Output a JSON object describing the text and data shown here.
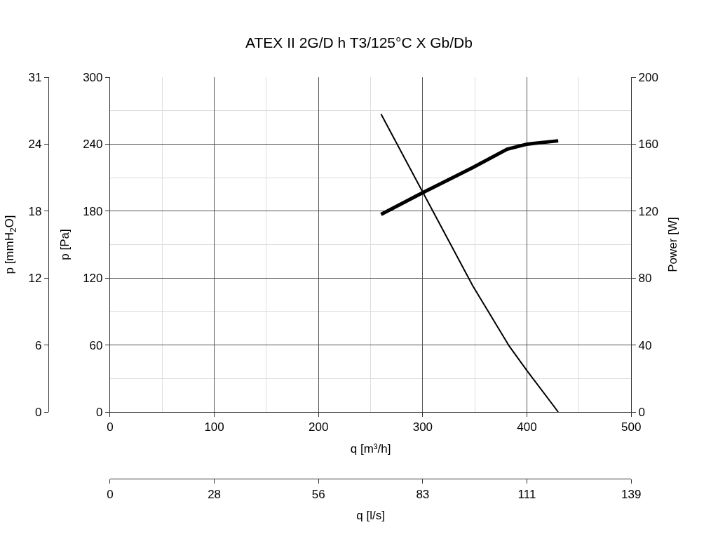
{
  "chart_data": {
    "type": "line",
    "title": "ATEX II 2G/D h T3/125°C X Gb/Db",
    "xlabel": "q [m³/h]",
    "ylabel": "p [Pa]",
    "y2label": "Power [W]",
    "y3label": "p [mmH$_{2}$O]",
    "x2label": "q [l/s]",
    "xlim": [
      0,
      500
    ],
    "xticks": [
      0,
      {
        "value": 50,
        "label": null
      },
      100,
      {
        "value": 150,
        "label": null
      },
      200,
      {
        "value": 250,
        "label": null
      },
      300,
      {
        "value": 350,
        "label": null
      },
      400,
      {
        "value": 450,
        "label": null
      },
      500
    ],
    "ylim": [
      0,
      300
    ],
    "yticks": [
      0,
      {
        "value": 30,
        "label": null
      },
      60,
      {
        "value": 90,
        "label": null
      },
      120,
      {
        "value": 150,
        "label": null
      },
      180,
      {
        "value": 210,
        "label": null
      },
      240,
      {
        "value": 270,
        "label": null
      },
      300
    ],
    "y2lim": [
      0,
      200
    ],
    "y2ticks": [
      0,
      40,
      80,
      120,
      160,
      200
    ],
    "y3lim": [
      0,
      30.59
    ],
    "y3ticks": [
      0,
      {
        "value": 6.12,
        "label": "6"
      },
      {
        "value": 12.24,
        "label": "12"
      },
      {
        "value": 18.35,
        "label": "18"
      },
      {
        "value": 24.47,
        "label": "24"
      },
      {
        "value": 30.59,
        "label": "31"
      }
    ],
    "x2lim": [
      0,
      138.89
    ],
    "x2ticks": [
      0,
      {
        "value": 27.78,
        "label": "28"
      },
      {
        "value": 55.56,
        "label": "56"
      },
      {
        "value": 83.33,
        "label": "83"
      },
      {
        "value": 111.11,
        "label": "111"
      },
      {
        "value": 138.89,
        "label": "139"
      }
    ],
    "grid": true,
    "marker": "none",
    "line_style": "solid",
    "series": [
      {
        "color": "#000000",
        "x": [
          260,
          300,
          348,
          383,
          400,
          430
        ],
        "values": [
          267,
          197,
          113,
          59,
          37,
          0
        ]
      },
      {
        "color": "#000000",
        "axis": "y2",
        "x": [
          260,
          300,
          348,
          381,
          400,
          430
        ],
        "values": [
          118,
          131,
          146,
          157,
          160,
          162
        ]
      }
    ]
  }
}
